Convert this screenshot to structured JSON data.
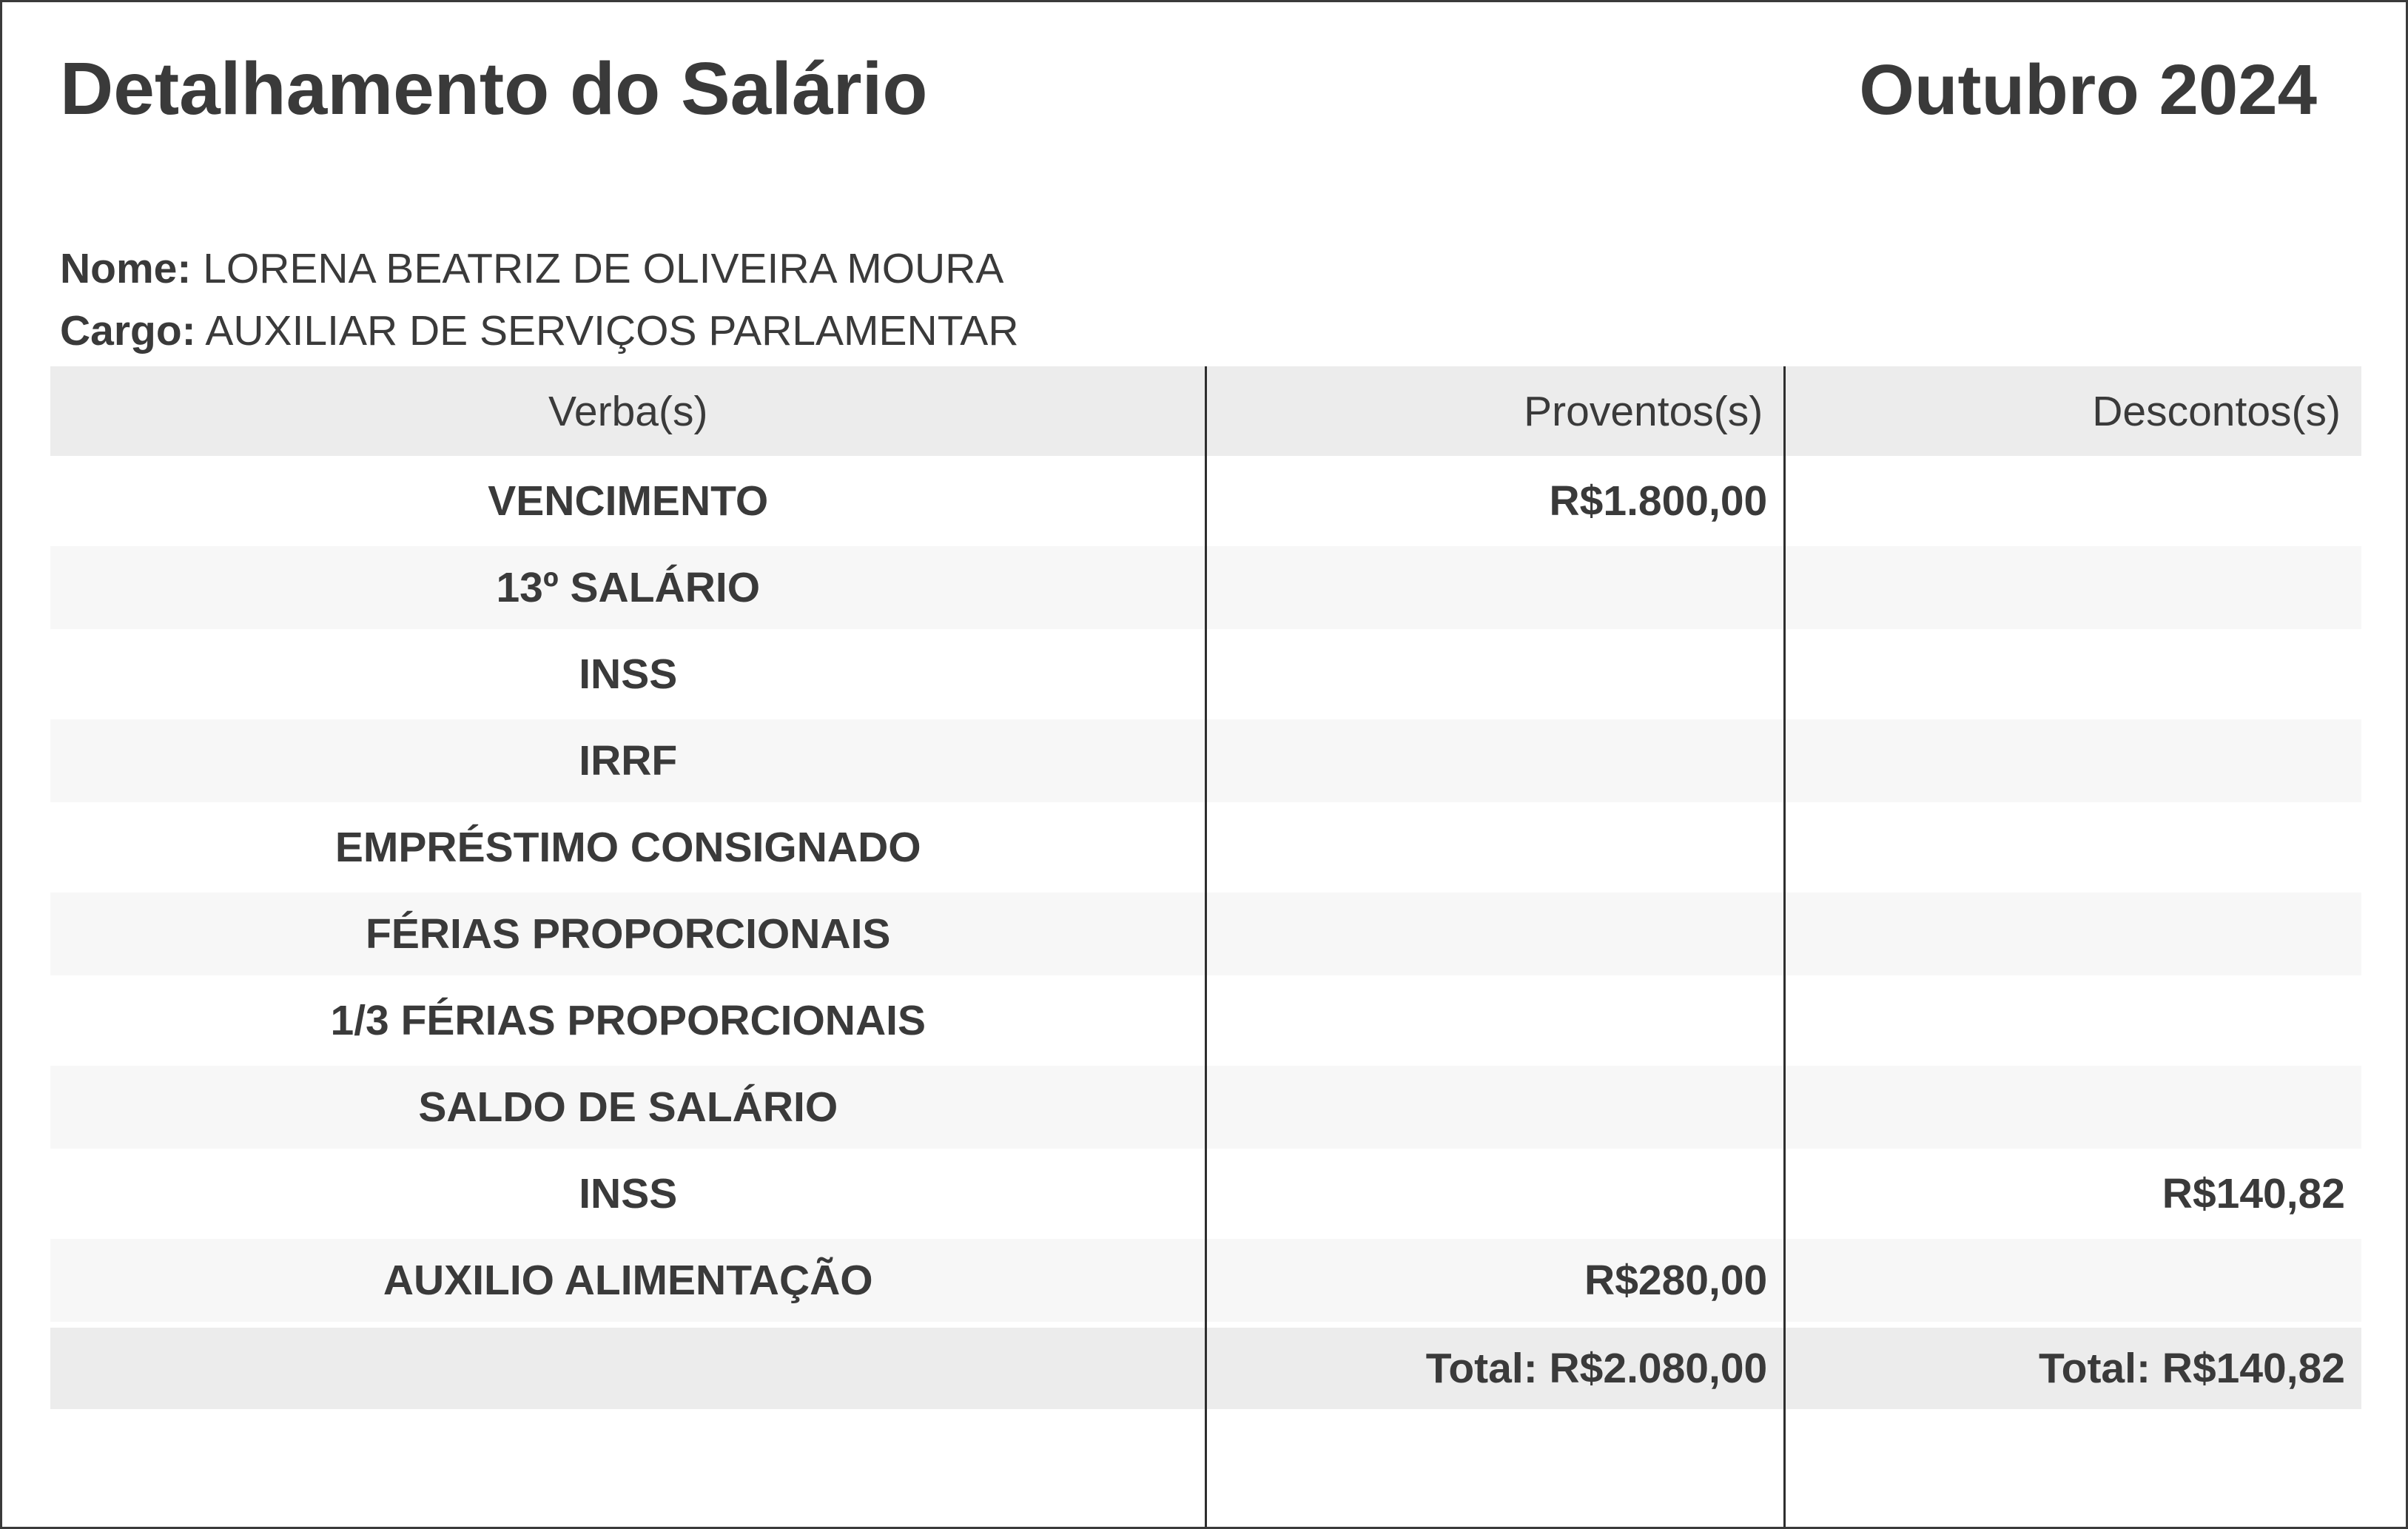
{
  "page": {
    "title": "Detalhamento do Salário",
    "period": "Outubro 2024"
  },
  "employee": {
    "name_label": "Nome:",
    "name": "LORENA BEATRIZ DE OLIVEIRA MOURA",
    "role_label": "Cargo:",
    "role": "AUXILIAR DE SERVIÇOS PARLAMENTAR"
  },
  "table": {
    "columns": [
      "Verba(s)",
      "Proventos(s)",
      "Descontos(s)"
    ],
    "rows": [
      {
        "verba": "VENCIMENTO",
        "proventos": "R$1.800,00",
        "descontos": ""
      },
      {
        "verba": "13º SALÁRIO",
        "proventos": "",
        "descontos": ""
      },
      {
        "verba": "INSS",
        "proventos": "",
        "descontos": ""
      },
      {
        "verba": "IRRF",
        "proventos": "",
        "descontos": ""
      },
      {
        "verba": "EMPRÉSTIMO CONSIGNADO",
        "proventos": "",
        "descontos": ""
      },
      {
        "verba": "FÉRIAS PROPORCIONAIS",
        "proventos": "",
        "descontos": ""
      },
      {
        "verba": "1/3 FÉRIAS PROPORCIONAIS",
        "proventos": "",
        "descontos": ""
      },
      {
        "verba": "SALDO DE SALÁRIO",
        "proventos": "",
        "descontos": ""
      },
      {
        "verba": "INSS",
        "proventos": "",
        "descontos": "R$140,82"
      },
      {
        "verba": "AUXILIO ALIMENTAÇÃO",
        "proventos": "R$280,00",
        "descontos": ""
      }
    ],
    "totals": {
      "proventos": "Total: R$2.080,00",
      "descontos": "Total: R$140,82"
    }
  },
  "colors": {
    "text": "#3a3a3a",
    "header_bg": "#ececec",
    "stripe_bg": "#f7f7f7",
    "divider": "#2e2e2e",
    "page_border": "#3a3a3a"
  }
}
